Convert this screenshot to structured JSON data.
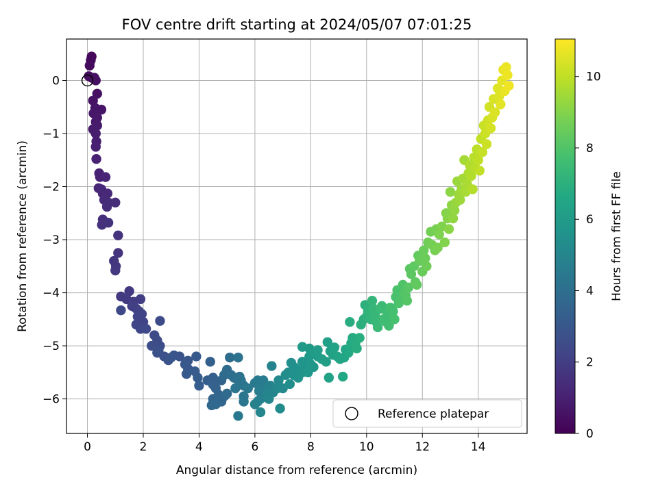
{
  "chart_data": {
    "type": "scatter",
    "title": "FOV centre drift starting at 2024/05/07 07:01:25",
    "xlabel": "Angular distance from reference (arcmin)",
    "ylabel": "Rotation from reference (arcmin)",
    "xlim": [
      -0.75,
      15.75
    ],
    "ylim": [
      -6.65,
      0.78
    ],
    "x_ticks": [
      0,
      2,
      4,
      6,
      8,
      10,
      12,
      14
    ],
    "y_ticks": [
      0,
      -1,
      -2,
      -3,
      -4,
      -5,
      -6
    ],
    "grid": true,
    "legend": {
      "placement": "bottom-right",
      "entries": [
        "Reference platepar"
      ]
    },
    "reference_point": {
      "x": 0.0,
      "y": 0.0
    },
    "colorbar": {
      "label": "Hours from first FF file",
      "range": [
        0,
        11.05
      ],
      "ticks": [
        0,
        2,
        4,
        6,
        8,
        10
      ],
      "colormap": "viridis"
    },
    "series": [
      {
        "points": [
          [
            0.15,
            0.45
          ],
          [
            0.12,
            0.38
          ],
          [
            0.08,
            0.28
          ],
          [
            0.05,
            0.08
          ],
          [
            0.15,
            0.05
          ],
          [
            0.25,
            0.05
          ],
          [
            0.3,
            0.0
          ],
          [
            0.35,
            -0.25
          ],
          [
            0.2,
            -0.38
          ],
          [
            0.28,
            -0.52
          ],
          [
            0.5,
            -0.55
          ],
          [
            0.22,
            -0.62
          ],
          [
            0.35,
            -0.7
          ],
          [
            0.3,
            -0.78
          ],
          [
            0.35,
            -0.85
          ],
          [
            0.2,
            -0.92
          ],
          [
            0.3,
            -1.0
          ],
          [
            0.32,
            -1.15
          ],
          [
            0.3,
            -1.25
          ],
          [
            0.32,
            -1.48
          ],
          [
            0.42,
            -1.75
          ],
          [
            0.45,
            -1.82
          ],
          [
            0.65,
            -1.82
          ],
          [
            0.4,
            -2.03
          ],
          [
            0.5,
            -2.05
          ],
          [
            0.55,
            -2.13
          ],
          [
            0.72,
            -2.13
          ],
          [
            0.6,
            -2.25
          ],
          [
            0.75,
            -2.3
          ],
          [
            0.7,
            -2.38
          ],
          [
            1.0,
            -2.3
          ],
          [
            0.55,
            -2.62
          ],
          [
            0.52,
            -2.72
          ],
          [
            0.75,
            -2.68
          ],
          [
            1.1,
            -2.92
          ],
          [
            1.1,
            -3.25
          ],
          [
            0.95,
            -3.4
          ],
          [
            1.02,
            -3.5
          ],
          [
            1.0,
            -3.58
          ],
          [
            1.5,
            -3.97
          ],
          [
            1.2,
            -4.07
          ],
          [
            1.4,
            -4.12
          ],
          [
            1.65,
            -4.17
          ],
          [
            1.9,
            -4.12
          ],
          [
            1.6,
            -4.25
          ],
          [
            1.75,
            -4.3
          ],
          [
            1.85,
            -4.35
          ],
          [
            1.95,
            -4.4
          ],
          [
            1.8,
            -4.45
          ],
          [
            2.0,
            -4.55
          ],
          [
            1.75,
            -4.6
          ],
          [
            1.9,
            -4.68
          ],
          [
            2.1,
            -4.68
          ],
          [
            1.2,
            -4.33
          ],
          [
            2.6,
            -4.53
          ],
          [
            2.4,
            -4.8
          ],
          [
            2.5,
            -4.9
          ],
          [
            2.6,
            -5.0
          ],
          [
            2.3,
            -5.0
          ],
          [
            2.55,
            -5.08
          ],
          [
            2.75,
            -5.2
          ],
          [
            2.5,
            -5.13
          ],
          [
            2.9,
            -5.27
          ],
          [
            3.1,
            -5.18
          ],
          [
            3.3,
            -5.2
          ],
          [
            3.0,
            -5.22
          ],
          [
            3.6,
            -5.28
          ],
          [
            3.5,
            -5.35
          ],
          [
            3.6,
            -5.43
          ],
          [
            3.55,
            -5.53
          ],
          [
            3.9,
            -5.2
          ],
          [
            3.85,
            -5.48
          ],
          [
            3.95,
            -5.6
          ],
          [
            4.0,
            -5.75
          ],
          [
            4.3,
            -5.65
          ],
          [
            4.5,
            -5.6
          ],
          [
            4.4,
            -5.3
          ],
          [
            4.5,
            -5.73
          ],
          [
            4.6,
            -5.8
          ],
          [
            4.8,
            -5.65
          ],
          [
            4.7,
            -5.92
          ],
          [
            4.5,
            -6.0
          ],
          [
            4.65,
            -6.02
          ],
          [
            4.8,
            -6.05
          ],
          [
            4.9,
            -5.95
          ],
          [
            4.45,
            -6.12
          ],
          [
            4.6,
            -6.1
          ],
          [
            5.0,
            -5.9
          ],
          [
            4.9,
            -5.55
          ],
          [
            5.0,
            -5.45
          ],
          [
            5.1,
            -5.22
          ],
          [
            5.15,
            -5.55
          ],
          [
            5.25,
            -5.6
          ],
          [
            5.35,
            -5.62
          ],
          [
            5.45,
            -5.58
          ],
          [
            5.4,
            -5.22
          ],
          [
            5.5,
            -5.65
          ],
          [
            5.6,
            -5.75
          ],
          [
            5.3,
            -5.8
          ],
          [
            5.6,
            -5.95
          ],
          [
            5.6,
            -6.05
          ],
          [
            5.75,
            -5.8
          ],
          [
            5.4,
            -6.32
          ],
          [
            6.0,
            -5.7
          ],
          [
            6.1,
            -5.65
          ],
          [
            6.2,
            -5.75
          ],
          [
            6.3,
            -5.65
          ],
          [
            6.15,
            -5.85
          ],
          [
            6.35,
            -5.9
          ],
          [
            6.1,
            -6.05
          ],
          [
            6.2,
            -6.0
          ],
          [
            6.0,
            -6.1
          ],
          [
            6.5,
            -5.78
          ],
          [
            6.55,
            -5.75
          ],
          [
            6.6,
            -5.38
          ],
          [
            6.65,
            -5.88
          ],
          [
            6.45,
            -5.9
          ],
          [
            6.5,
            -6.0
          ],
          [
            6.2,
            -6.25
          ],
          [
            6.8,
            -5.8
          ],
          [
            6.85,
            -5.65
          ],
          [
            7.0,
            -5.8
          ],
          [
            6.9,
            -6.18
          ],
          [
            7.1,
            -5.55
          ],
          [
            7.2,
            -5.5
          ],
          [
            7.25,
            -5.72
          ],
          [
            7.3,
            -5.32
          ],
          [
            7.4,
            -5.4
          ],
          [
            7.5,
            -5.45
          ],
          [
            7.4,
            -5.55
          ],
          [
            7.55,
            -5.6
          ],
          [
            7.7,
            -5.5
          ],
          [
            7.7,
            -5.3
          ],
          [
            7.8,
            -5.42
          ],
          [
            7.9,
            -5.5
          ],
          [
            8.0,
            -5.35
          ],
          [
            8.1,
            -5.4
          ],
          [
            7.95,
            -5.2
          ],
          [
            7.95,
            -5.05
          ],
          [
            7.7,
            -5.02
          ],
          [
            8.1,
            -5.15
          ],
          [
            8.25,
            -5.2
          ],
          [
            8.25,
            -5.08
          ],
          [
            8.4,
            -5.25
          ],
          [
            8.55,
            -5.3
          ],
          [
            8.6,
            -4.93
          ],
          [
            8.7,
            -5.1
          ],
          [
            8.8,
            -5.17
          ],
          [
            8.65,
            -5.6
          ],
          [
            8.85,
            -5.03
          ],
          [
            8.95,
            -5.2
          ],
          [
            9.05,
            -5.25
          ],
          [
            9.2,
            -5.22
          ],
          [
            9.25,
            -5.07
          ],
          [
            9.15,
            -5.58
          ],
          [
            9.35,
            -5.13
          ],
          [
            9.4,
            -5.05
          ],
          [
            9.45,
            -4.95
          ],
          [
            9.5,
            -4.85
          ],
          [
            9.6,
            -4.95
          ],
          [
            9.65,
            -5.05
          ],
          [
            9.4,
            -4.55
          ],
          [
            9.75,
            -4.85
          ],
          [
            9.8,
            -4.6
          ],
          [
            9.9,
            -4.5
          ],
          [
            9.95,
            -4.23
          ],
          [
            10.0,
            -4.45
          ],
          [
            10.05,
            -4.35
          ],
          [
            10.1,
            -4.38
          ],
          [
            10.15,
            -4.5
          ],
          [
            10.2,
            -4.15
          ],
          [
            10.25,
            -4.3
          ],
          [
            10.3,
            -4.42
          ],
          [
            10.35,
            -4.55
          ],
          [
            10.4,
            -4.65
          ],
          [
            10.5,
            -4.3
          ],
          [
            10.55,
            -4.25
          ],
          [
            10.6,
            -4.5
          ],
          [
            10.7,
            -4.55
          ],
          [
            10.75,
            -4.4
          ],
          [
            10.8,
            -4.62
          ],
          [
            10.85,
            -4.28
          ],
          [
            10.95,
            -4.35
          ],
          [
            11.0,
            -4.5
          ],
          [
            11.05,
            -4.08
          ],
          [
            11.1,
            -3.95
          ],
          [
            11.15,
            -4.2
          ],
          [
            11.2,
            -4.15
          ],
          [
            11.3,
            -3.85
          ],
          [
            11.35,
            -4.0
          ],
          [
            11.4,
            -4.05
          ],
          [
            11.45,
            -4.15
          ],
          [
            11.5,
            -3.9
          ],
          [
            11.55,
            -3.55
          ],
          [
            11.6,
            -3.65
          ],
          [
            11.7,
            -3.5
          ],
          [
            11.75,
            -3.8
          ],
          [
            11.8,
            -3.85
          ],
          [
            11.85,
            -3.3
          ],
          [
            11.9,
            -3.4
          ],
          [
            12.0,
            -3.6
          ],
          [
            12.05,
            -3.2
          ],
          [
            12.1,
            -3.35
          ],
          [
            12.15,
            -3.5
          ],
          [
            12.2,
            -3.05
          ],
          [
            12.3,
            -2.85
          ],
          [
            12.35,
            -3.1
          ],
          [
            12.45,
            -3.2
          ],
          [
            12.5,
            -2.8
          ],
          [
            12.55,
            -3.15
          ],
          [
            12.6,
            -2.9
          ],
          [
            12.7,
            -2.75
          ],
          [
            12.8,
            -3.05
          ],
          [
            12.85,
            -2.5
          ],
          [
            12.9,
            -2.6
          ],
          [
            12.95,
            -2.8
          ],
          [
            13.0,
            -2.1
          ],
          [
            13.05,
            -2.35
          ],
          [
            13.1,
            -2.6
          ],
          [
            13.15,
            -2.45
          ],
          [
            13.2,
            -2.3
          ],
          [
            13.25,
            -1.9
          ],
          [
            13.3,
            -2.15
          ],
          [
            13.35,
            -2.25
          ],
          [
            13.4,
            -2.05
          ],
          [
            13.45,
            -1.85
          ],
          [
            13.5,
            -1.5
          ],
          [
            13.55,
            -2.1
          ],
          [
            13.6,
            -1.95
          ],
          [
            13.65,
            -1.75
          ],
          [
            13.7,
            -1.6
          ],
          [
            13.75,
            -1.8
          ],
          [
            13.8,
            -2.05
          ],
          [
            13.85,
            -1.45
          ],
          [
            13.9,
            -1.65
          ],
          [
            13.95,
            -1.3
          ],
          [
            14.0,
            -1.5
          ],
          [
            14.05,
            -1.7
          ],
          [
            14.1,
            -1.1
          ],
          [
            14.15,
            -1.35
          ],
          [
            14.2,
            -0.85
          ],
          [
            14.25,
            -1.0
          ],
          [
            14.3,
            -1.2
          ],
          [
            14.35,
            -0.75
          ],
          [
            14.4,
            -0.5
          ],
          [
            14.45,
            -0.9
          ],
          [
            14.5,
            -0.7
          ],
          [
            14.55,
            -0.35
          ],
          [
            14.6,
            -0.6
          ],
          [
            14.7,
            -0.15
          ],
          [
            14.75,
            -0.3
          ],
          [
            14.8,
            -0.45
          ],
          [
            14.85,
            0.0
          ],
          [
            14.9,
            0.2
          ],
          [
            14.95,
            -0.2
          ],
          [
            15.0,
            0.25
          ],
          [
            15.05,
            0.1
          ],
          [
            15.1,
            -0.1
          ]
        ]
      }
    ]
  }
}
